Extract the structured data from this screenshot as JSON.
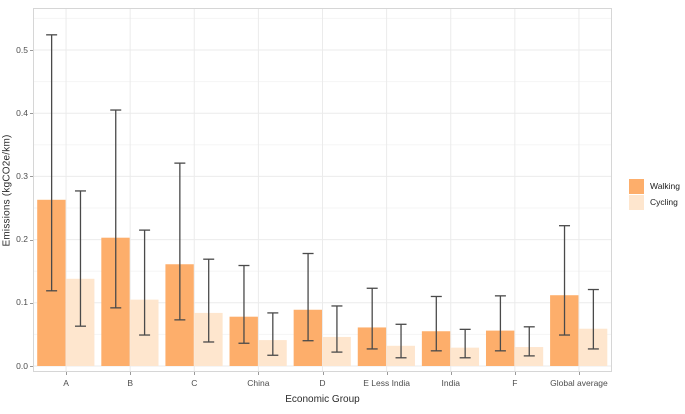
{
  "figure": {
    "background": "#ffffff",
    "panel_border_color": "#d6d6d6",
    "grid_major_color": "#ebebeb",
    "grid_minor_color": "#f5f5f5",
    "error_bar_color": "#4a4a4a",
    "tick_text_color": "#4d4d4d",
    "axis_title_color": "#2b2b2b"
  },
  "chart_data": {
    "type": "bar",
    "title": "",
    "xlabel": "Economic Group",
    "ylabel": "Emissions (kgCO2e/km)",
    "categories": [
      "A",
      "B",
      "C",
      "China",
      "D",
      "E Less India",
      "India",
      "F",
      "Global average"
    ],
    "series": [
      {
        "name": "Walking",
        "color": "#FDAE6B",
        "values": [
          0.263,
          0.203,
          0.161,
          0.078,
          0.089,
          0.061,
          0.055,
          0.056,
          0.112
        ],
        "error_low": [
          0.119,
          0.092,
          0.073,
          0.036,
          0.04,
          0.027,
          0.024,
          0.024,
          0.049
        ],
        "error_high": [
          0.524,
          0.405,
          0.321,
          0.159,
          0.178,
          0.123,
          0.11,
          0.111,
          0.222
        ]
      },
      {
        "name": "Cycling",
        "color": "#FEE6CE",
        "values": [
          0.138,
          0.105,
          0.084,
          0.041,
          0.046,
          0.032,
          0.029,
          0.03,
          0.059
        ],
        "error_low": [
          0.063,
          0.049,
          0.038,
          0.017,
          0.022,
          0.013,
          0.013,
          0.016,
          0.027
        ],
        "error_high": [
          0.277,
          0.215,
          0.169,
          0.084,
          0.095,
          0.066,
          0.058,
          0.062,
          0.121
        ]
      }
    ],
    "ylim": [
      0,
      0.566
    ],
    "yticks": [
      0.0,
      0.1,
      0.2,
      0.3,
      0.4,
      0.5
    ],
    "ytick_labels": [
      "0.0",
      "0.1",
      "0.2",
      "0.3",
      "0.4",
      "0.5"
    ],
    "minor_yticks": [
      0.05,
      0.15,
      0.25,
      0.35,
      0.45,
      0.55
    ],
    "grid": "horizontal major+minor, vertical major at category centers",
    "legend_position": "right",
    "error_bars": "whiskers with caps on every bar"
  }
}
